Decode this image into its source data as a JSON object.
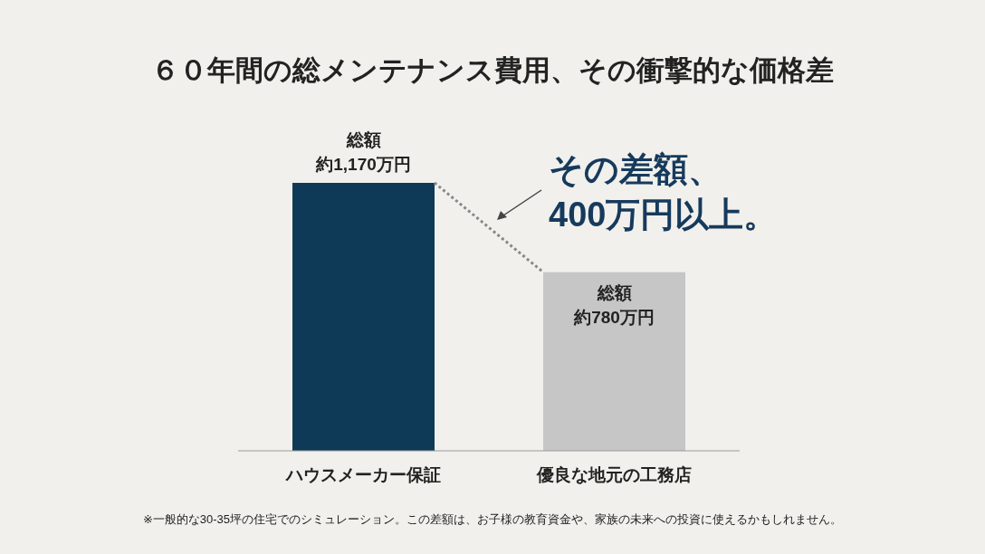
{
  "chart_data": {
    "type": "bar",
    "title": "６０年間の総メンテナンス費用、その衝撃的な価格差",
    "categories": [
      "ハウスメーカー保証",
      "優良な地元の工務店"
    ],
    "values": [
      1170,
      780
    ],
    "colors": [
      "#0e3a57",
      "#c6c6c6"
    ],
    "value_labels": [
      "総額約1,170万円",
      "総額約780万円"
    ],
    "annotations": [
      "その差額、\n400万円以上。",
      "※一般的な30-35坪の住宅でのシミュレーション。この差額は、お子様の教育資金や、家族の未来への投資に使えるかもしれません。"
    ]
  }
}
